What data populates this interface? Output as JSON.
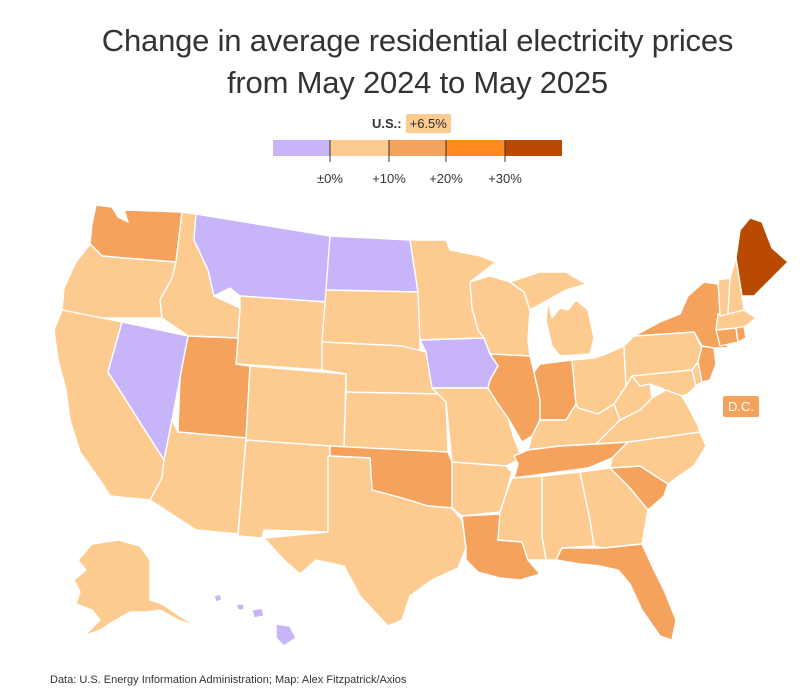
{
  "title": {
    "line1": "Change in average residential electricity prices",
    "line2": "from May 2024 to May 2025"
  },
  "us_summary": {
    "label": "U.S.:",
    "value": "+6.5%"
  },
  "legend": {
    "tick_labels": [
      "±0%",
      "+10%",
      "+20%",
      "+30%"
    ],
    "bins": [
      {
        "name": "decrease",
        "color": "#c8b4f8"
      },
      {
        "name": "0-10",
        "color": "#fdcb8f"
      },
      {
        "name": "10-20",
        "color": "#f5a25d"
      },
      {
        "name": "20-30",
        "color": "#ff8a1f"
      },
      {
        "name": "30+",
        "color": "#b94a00"
      }
    ]
  },
  "colors": {
    "decrease": "#c8b4f8",
    "low": "#fdcb8f",
    "mid": "#f5a25d",
    "high": "#ff8a1f",
    "top": "#b94a00"
  },
  "dc_label": "D.C.",
  "source": "Data: U.S. Energy Information Administration; Map: Alex Fitzpatrick/Axios"
}
